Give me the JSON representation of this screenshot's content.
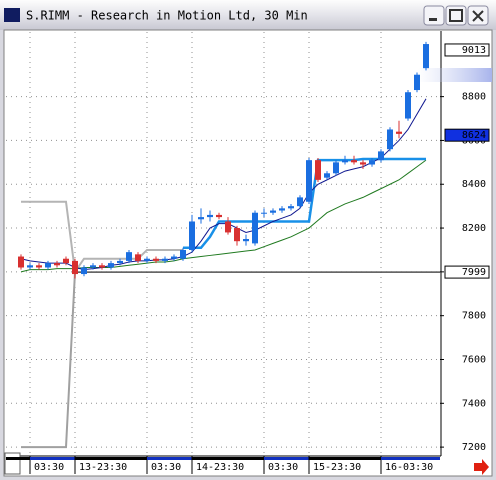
{
  "window": {
    "title": "S.RIMM - Research in Motion Ltd, 30 Min"
  },
  "chart_data": {
    "type": "candlestick",
    "categories": [
      null,
      "03:30",
      null,
      null,
      null,
      null,
      "13-23:30",
      null,
      null,
      null,
      null,
      null,
      null,
      null,
      "03:30",
      null,
      null,
      null,
      null,
      "14-23:30",
      null,
      null,
      null,
      null,
      null,
      null,
      null,
      "03:30",
      null,
      null,
      null,
      null,
      "15-23:30",
      null,
      null,
      null,
      null,
      null,
      null,
      null,
      "16-03:30",
      null,
      null,
      null,
      null,
      null
    ],
    "open": [
      8070,
      8020,
      8030,
      8020,
      8040,
      8060,
      8050,
      7990,
      8020,
      8030,
      8020,
      8040,
      8050,
      8080,
      8050,
      8060,
      8050,
      8060,
      8060,
      8100,
      8240,
      8250,
      8260,
      8230,
      8200,
      8140,
      8130,
      8270,
      8270,
      8280,
      8290,
      8300,
      8320,
      8510,
      8430,
      8450,
      8500,
      8510,
      8500,
      8490,
      8510,
      8560,
      8640,
      8700,
      8830,
      8930
    ],
    "high": [
      8080,
      8040,
      8040,
      8050,
      8050,
      8070,
      8060,
      8030,
      8040,
      8040,
      8050,
      8060,
      8100,
      8090,
      8070,
      8070,
      8070,
      8080,
      8110,
      8260,
      8290,
      8280,
      8270,
      8250,
      8210,
      8170,
      8280,
      8290,
      8290,
      8300,
      8310,
      8350,
      8520,
      8520,
      8460,
      8510,
      8530,
      8530,
      8510,
      8520,
      8560,
      8660,
      8690,
      8830,
      8910,
      9050
    ],
    "low": [
      8010,
      8010,
      8010,
      8010,
      8020,
      8030,
      7970,
      7980,
      8010,
      8010,
      8010,
      8030,
      8040,
      8040,
      8040,
      8040,
      8040,
      8050,
      8050,
      8090,
      8220,
      8230,
      8240,
      8170,
      8120,
      8120,
      8120,
      8250,
      8260,
      8270,
      8280,
      8290,
      8310,
      8410,
      8420,
      8440,
      8490,
      8490,
      8470,
      8480,
      8500,
      8550,
      8610,
      8690,
      8820,
      8920
    ],
    "close": [
      8020,
      8030,
      8020,
      8040,
      8030,
      8040,
      7990,
      8020,
      8030,
      8020,
      8040,
      8050,
      8090,
      8050,
      8060,
      8050,
      8060,
      8070,
      8100,
      8230,
      8250,
      8260,
      8250,
      8180,
      8140,
      8150,
      8270,
      8270,
      8280,
      8290,
      8300,
      8340,
      8510,
      8420,
      8450,
      8500,
      8510,
      8500,
      8490,
      8510,
      8550,
      8650,
      8630,
      8820,
      8900,
      9040
    ],
    "up_color": "#1a6ee0",
    "down_color": "#d83030",
    "lines": [
      {
        "color": "#b4b4b4",
        "width": 2,
        "values": [
          8320,
          8320,
          8320,
          8320,
          8320,
          8320,
          8000,
          8060,
          8060,
          8060,
          8060,
          8060,
          8060,
          8060,
          8100,
          8100,
          8100,
          8100,
          8100,
          null,
          null,
          null,
          null,
          null,
          null,
          null,
          null,
          null,
          null,
          null,
          null,
          null,
          null,
          null,
          null,
          null,
          null,
          null,
          null,
          null,
          null,
          null,
          null,
          null,
          null,
          null
        ]
      },
      {
        "color": "#a0a0a0",
        "width": 2,
        "values": [
          7200,
          7200,
          7200,
          7200,
          7200,
          7200,
          7999,
          null,
          null,
          null,
          null,
          null,
          null,
          null,
          null,
          null,
          null,
          null,
          null,
          null,
          null,
          null,
          null,
          null,
          null,
          null,
          null,
          null,
          null,
          null,
          null,
          null,
          null,
          null,
          null,
          null,
          null,
          null,
          null,
          null,
          null,
          null,
          null,
          null,
          null,
          null
        ]
      },
      {
        "color": "#207a20",
        "width": 1,
        "values": [
          8000,
          8010,
          8010,
          8010,
          8015,
          8015,
          8015,
          8020,
          8020,
          8020,
          8020,
          8025,
          8030,
          8035,
          8040,
          8045,
          8045,
          8050,
          8060,
          8065,
          8070,
          8075,
          8080,
          8085,
          8090,
          8095,
          8100,
          8115,
          8130,
          8145,
          8160,
          8180,
          8200,
          8235,
          8270,
          8290,
          8310,
          8325,
          8340,
          8360,
          8380,
          8400,
          8420,
          8450,
          8480,
          8510
        ]
      },
      {
        "color": "#1890e8",
        "width": 2.5,
        "values": [
          null,
          null,
          null,
          null,
          null,
          null,
          null,
          null,
          null,
          null,
          null,
          null,
          null,
          null,
          null,
          null,
          null,
          null,
          8110,
          8110,
          8110,
          8160,
          8230,
          8230,
          8230,
          8230,
          8230,
          8230,
          8230,
          8230,
          8230,
          8230,
          8230,
          8510,
          8510,
          8510,
          8510,
          8510,
          8515,
          8515,
          8515,
          8515,
          8515,
          8515,
          8515,
          8515
        ]
      },
      {
        "color": "#101890",
        "width": 1,
        "values": [
          8060,
          8050,
          8045,
          8040,
          8040,
          8040,
          8020,
          8010,
          8015,
          8020,
          8030,
          8035,
          8045,
          8050,
          8050,
          8055,
          8055,
          8060,
          8070,
          8090,
          8140,
          8200,
          8220,
          8220,
          8200,
          8180,
          8190,
          8210,
          8230,
          8245,
          8260,
          8290,
          8360,
          8400,
          8420,
          8440,
          8460,
          8470,
          8480,
          8500,
          8520,
          8560,
          8600,
          8650,
          8720,
          8790
        ]
      }
    ],
    "ylim": [
      7164,
      9095
    ],
    "yticks": [
      7200,
      7400,
      7600,
      7800,
      8000,
      8200,
      8400,
      8600,
      8800
    ],
    "grid": true,
    "price_markers": [
      {
        "value": 9013,
        "color": "#ffffff",
        "text_color": "#000000"
      },
      {
        "value": 8624,
        "color": "#1030e0",
        "text_color": "#ffffff"
      },
      {
        "value": 7999,
        "color": "#ffffff",
        "text_color": "#000000",
        "line": "#505050"
      }
    ]
  }
}
